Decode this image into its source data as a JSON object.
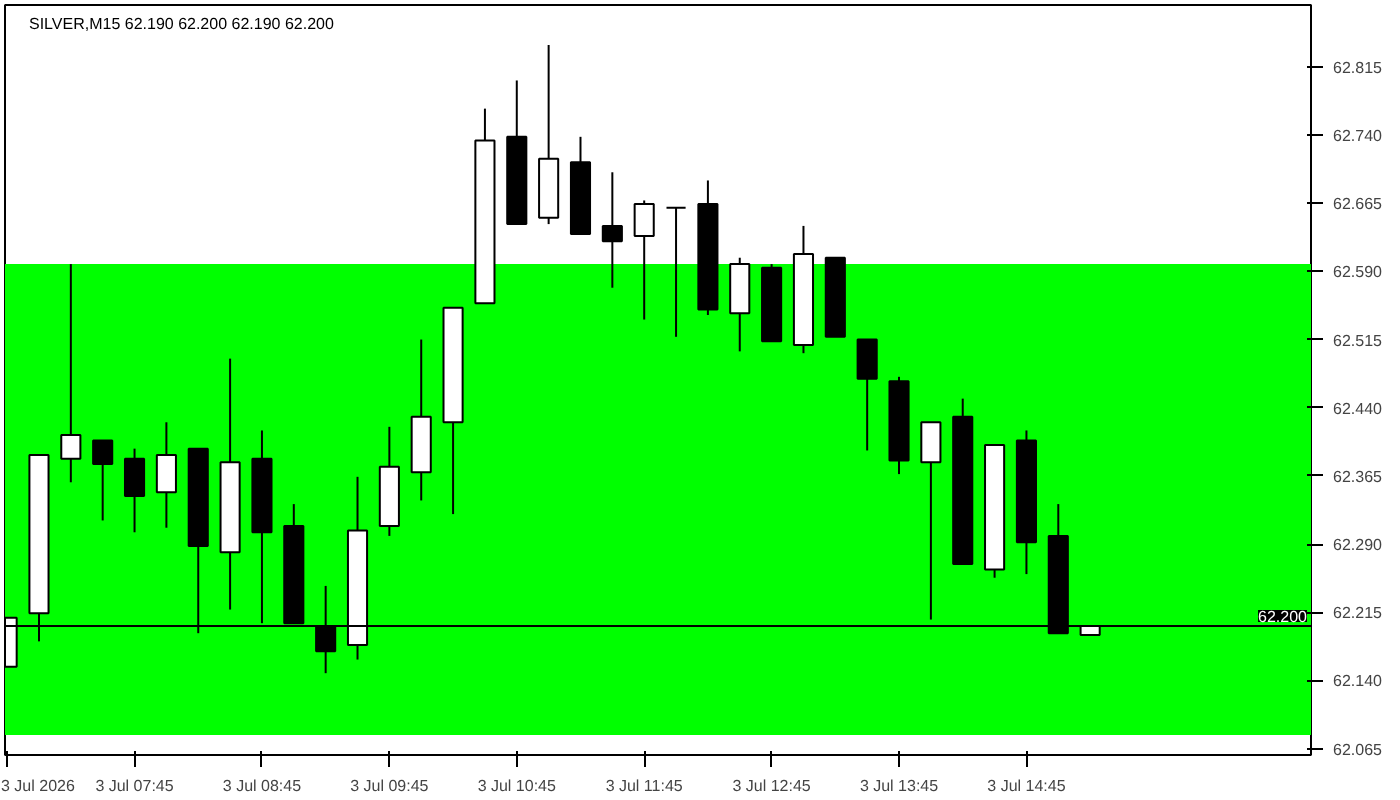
{
  "chart_data": {
    "type": "candlestick",
    "title": "SILVER,M15  62.190 62.200 62.190 62.200",
    "x": [
      "2026-07-03T06:45",
      "2026-07-03T07:00",
      "2026-07-03T07:15",
      "2026-07-03T07:30",
      "2026-07-03T07:45",
      "2026-07-03T08:00",
      "2026-07-03T08:15",
      "2026-07-03T08:30",
      "2026-07-03T08:45",
      "2026-07-03T09:00",
      "2026-07-03T09:15",
      "2026-07-03T09:30",
      "2026-07-03T09:45",
      "2026-07-03T10:00",
      "2026-07-03T10:15",
      "2026-07-03T10:30",
      "2026-07-03T10:45",
      "2026-07-03T11:00",
      "2026-07-03T11:15",
      "2026-07-03T11:30",
      "2026-07-03T11:45",
      "2026-07-03T12:00",
      "2026-07-03T12:15",
      "2026-07-03T12:30",
      "2026-07-03T12:45",
      "2026-07-03T13:00",
      "2026-07-03T13:15",
      "2026-07-03T13:30",
      "2026-07-03T13:45",
      "2026-07-03T14:00",
      "2026-07-03T14:15",
      "2026-07-03T14:30",
      "2026-07-03T14:45",
      "2026-07-03T15:00",
      "2026-07-03T15:15"
    ],
    "ohlc": [
      [
        62.155,
        62.209,
        62.155,
        62.209
      ],
      [
        62.214,
        62.388,
        62.183,
        62.388
      ],
      [
        62.384,
        62.598,
        62.358,
        62.41
      ],
      [
        62.404,
        62.404,
        62.316,
        62.378
      ],
      [
        62.384,
        62.395,
        62.303,
        62.343
      ],
      [
        62.347,
        62.424,
        62.308,
        62.388
      ],
      [
        62.395,
        62.395,
        62.192,
        62.288
      ],
      [
        62.281,
        62.494,
        62.218,
        62.38
      ],
      [
        62.384,
        62.415,
        62.203,
        62.303
      ],
      [
        62.31,
        62.334,
        62.203,
        62.203
      ],
      [
        62.2,
        62.244,
        62.148,
        62.172
      ],
      [
        62.179,
        62.364,
        62.163,
        62.305
      ],
      [
        62.31,
        62.419,
        62.299,
        62.375
      ],
      [
        62.369,
        62.515,
        62.338,
        62.43
      ],
      [
        62.424,
        62.55,
        62.323,
        62.55
      ],
      [
        62.555,
        62.769,
        62.555,
        62.734
      ],
      [
        62.738,
        62.8,
        62.642,
        62.642
      ],
      [
        62.649,
        62.839,
        62.642,
        62.714
      ],
      [
        62.71,
        62.738,
        62.631,
        62.631
      ],
      [
        62.64,
        62.699,
        62.572,
        62.623
      ],
      [
        62.629,
        62.668,
        62.537,
        62.664
      ],
      [
        62.66,
        62.66,
        62.518,
        62.66
      ],
      [
        62.664,
        62.69,
        62.542,
        62.548
      ],
      [
        62.544,
        62.605,
        62.502,
        62.598
      ],
      [
        62.594,
        62.598,
        62.513,
        62.513
      ],
      [
        62.509,
        62.64,
        62.5,
        62.609
      ],
      [
        62.605,
        62.605,
        62.518,
        62.518
      ],
      [
        62.515,
        62.515,
        62.393,
        62.472
      ],
      [
        62.469,
        62.474,
        62.367,
        62.382
      ],
      [
        62.38,
        62.424,
        62.207,
        62.424
      ],
      [
        62.43,
        62.45,
        62.268,
        62.268
      ],
      [
        62.262,
        62.399,
        62.253,
        62.399
      ],
      [
        62.404,
        62.415,
        62.257,
        62.292
      ],
      [
        62.299,
        62.334,
        62.192,
        62.192
      ],
      [
        62.19,
        62.2,
        62.19,
        62.2
      ]
    ],
    "xlim": [
      "2026-07-03T06:44",
      "2026-07-03T16:59"
    ],
    "xticks": [
      {
        "value": "2026-07-03T06:45",
        "label": "3 Jul 2026"
      },
      {
        "value": "2026-07-03T07:45",
        "label": "3 Jul 07:45"
      },
      {
        "value": "2026-07-03T08:45",
        "label": "3 Jul 08:45"
      },
      {
        "value": "2026-07-03T09:45",
        "label": "3 Jul 09:45"
      },
      {
        "value": "2026-07-03T10:45",
        "label": "3 Jul 10:45"
      },
      {
        "value": "2026-07-03T11:45",
        "label": "3 Jul 11:45"
      },
      {
        "value": "2026-07-03T12:45",
        "label": "3 Jul 12:45"
      },
      {
        "value": "2026-07-03T13:45",
        "label": "3 Jul 13:45"
      },
      {
        "value": "2026-07-03T14:45",
        "label": "3 Jul 14:45"
      }
    ],
    "ylim": [
      62.058,
      62.883
    ],
    "yticks": [
      {
        "value": 62.065,
        "label": "62.065"
      },
      {
        "value": 62.14,
        "label": "62.140"
      },
      {
        "value": 62.215,
        "label": "62.215"
      },
      {
        "value": 62.29,
        "label": "62.290"
      },
      {
        "value": 62.365,
        "label": "62.365"
      },
      {
        "value": 62.44,
        "label": "62.440"
      },
      {
        "value": 62.515,
        "label": "62.515"
      },
      {
        "value": 62.59,
        "label": "62.590"
      },
      {
        "value": 62.665,
        "label": "62.665"
      },
      {
        "value": 62.74,
        "label": "62.740"
      },
      {
        "value": 62.815,
        "label": "62.815"
      }
    ],
    "bands": [
      {
        "axis": "y",
        "from": 62.08,
        "to": 62.598,
        "color": "#00ff00"
      }
    ],
    "ref_lines": [
      {
        "axis": "y",
        "value": 62.2,
        "label": "62.200",
        "color": "#000000"
      }
    ],
    "grid": false
  }
}
